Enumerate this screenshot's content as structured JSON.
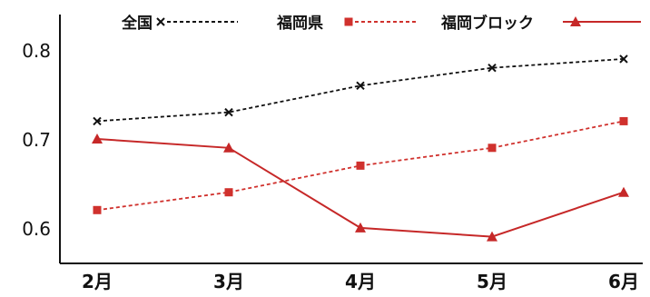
{
  "chart_data": {
    "type": "line",
    "categories": [
      "2月",
      "3月",
      "4月",
      "5月",
      "6月"
    ],
    "series": [
      {
        "name": "全国",
        "values": [
          0.72,
          0.73,
          0.76,
          0.78,
          0.79
        ],
        "color": "#111111",
        "marker": "x",
        "dash": true
      },
      {
        "name": "福岡県",
        "values": [
          0.62,
          0.64,
          0.67,
          0.69,
          0.72
        ],
        "color": "#d0312d",
        "marker": "square",
        "dash": true
      },
      {
        "name": "福岡ブロック",
        "values": [
          0.7,
          0.69,
          0.6,
          0.59,
          0.64
        ],
        "color": "#c62828",
        "marker": "triangle",
        "dash": false
      }
    ],
    "yticks": [
      "0.6",
      "0.7",
      "0.8"
    ],
    "ylim": [
      0.56,
      0.84
    ],
    "grid": false,
    "legend_position": "top"
  }
}
